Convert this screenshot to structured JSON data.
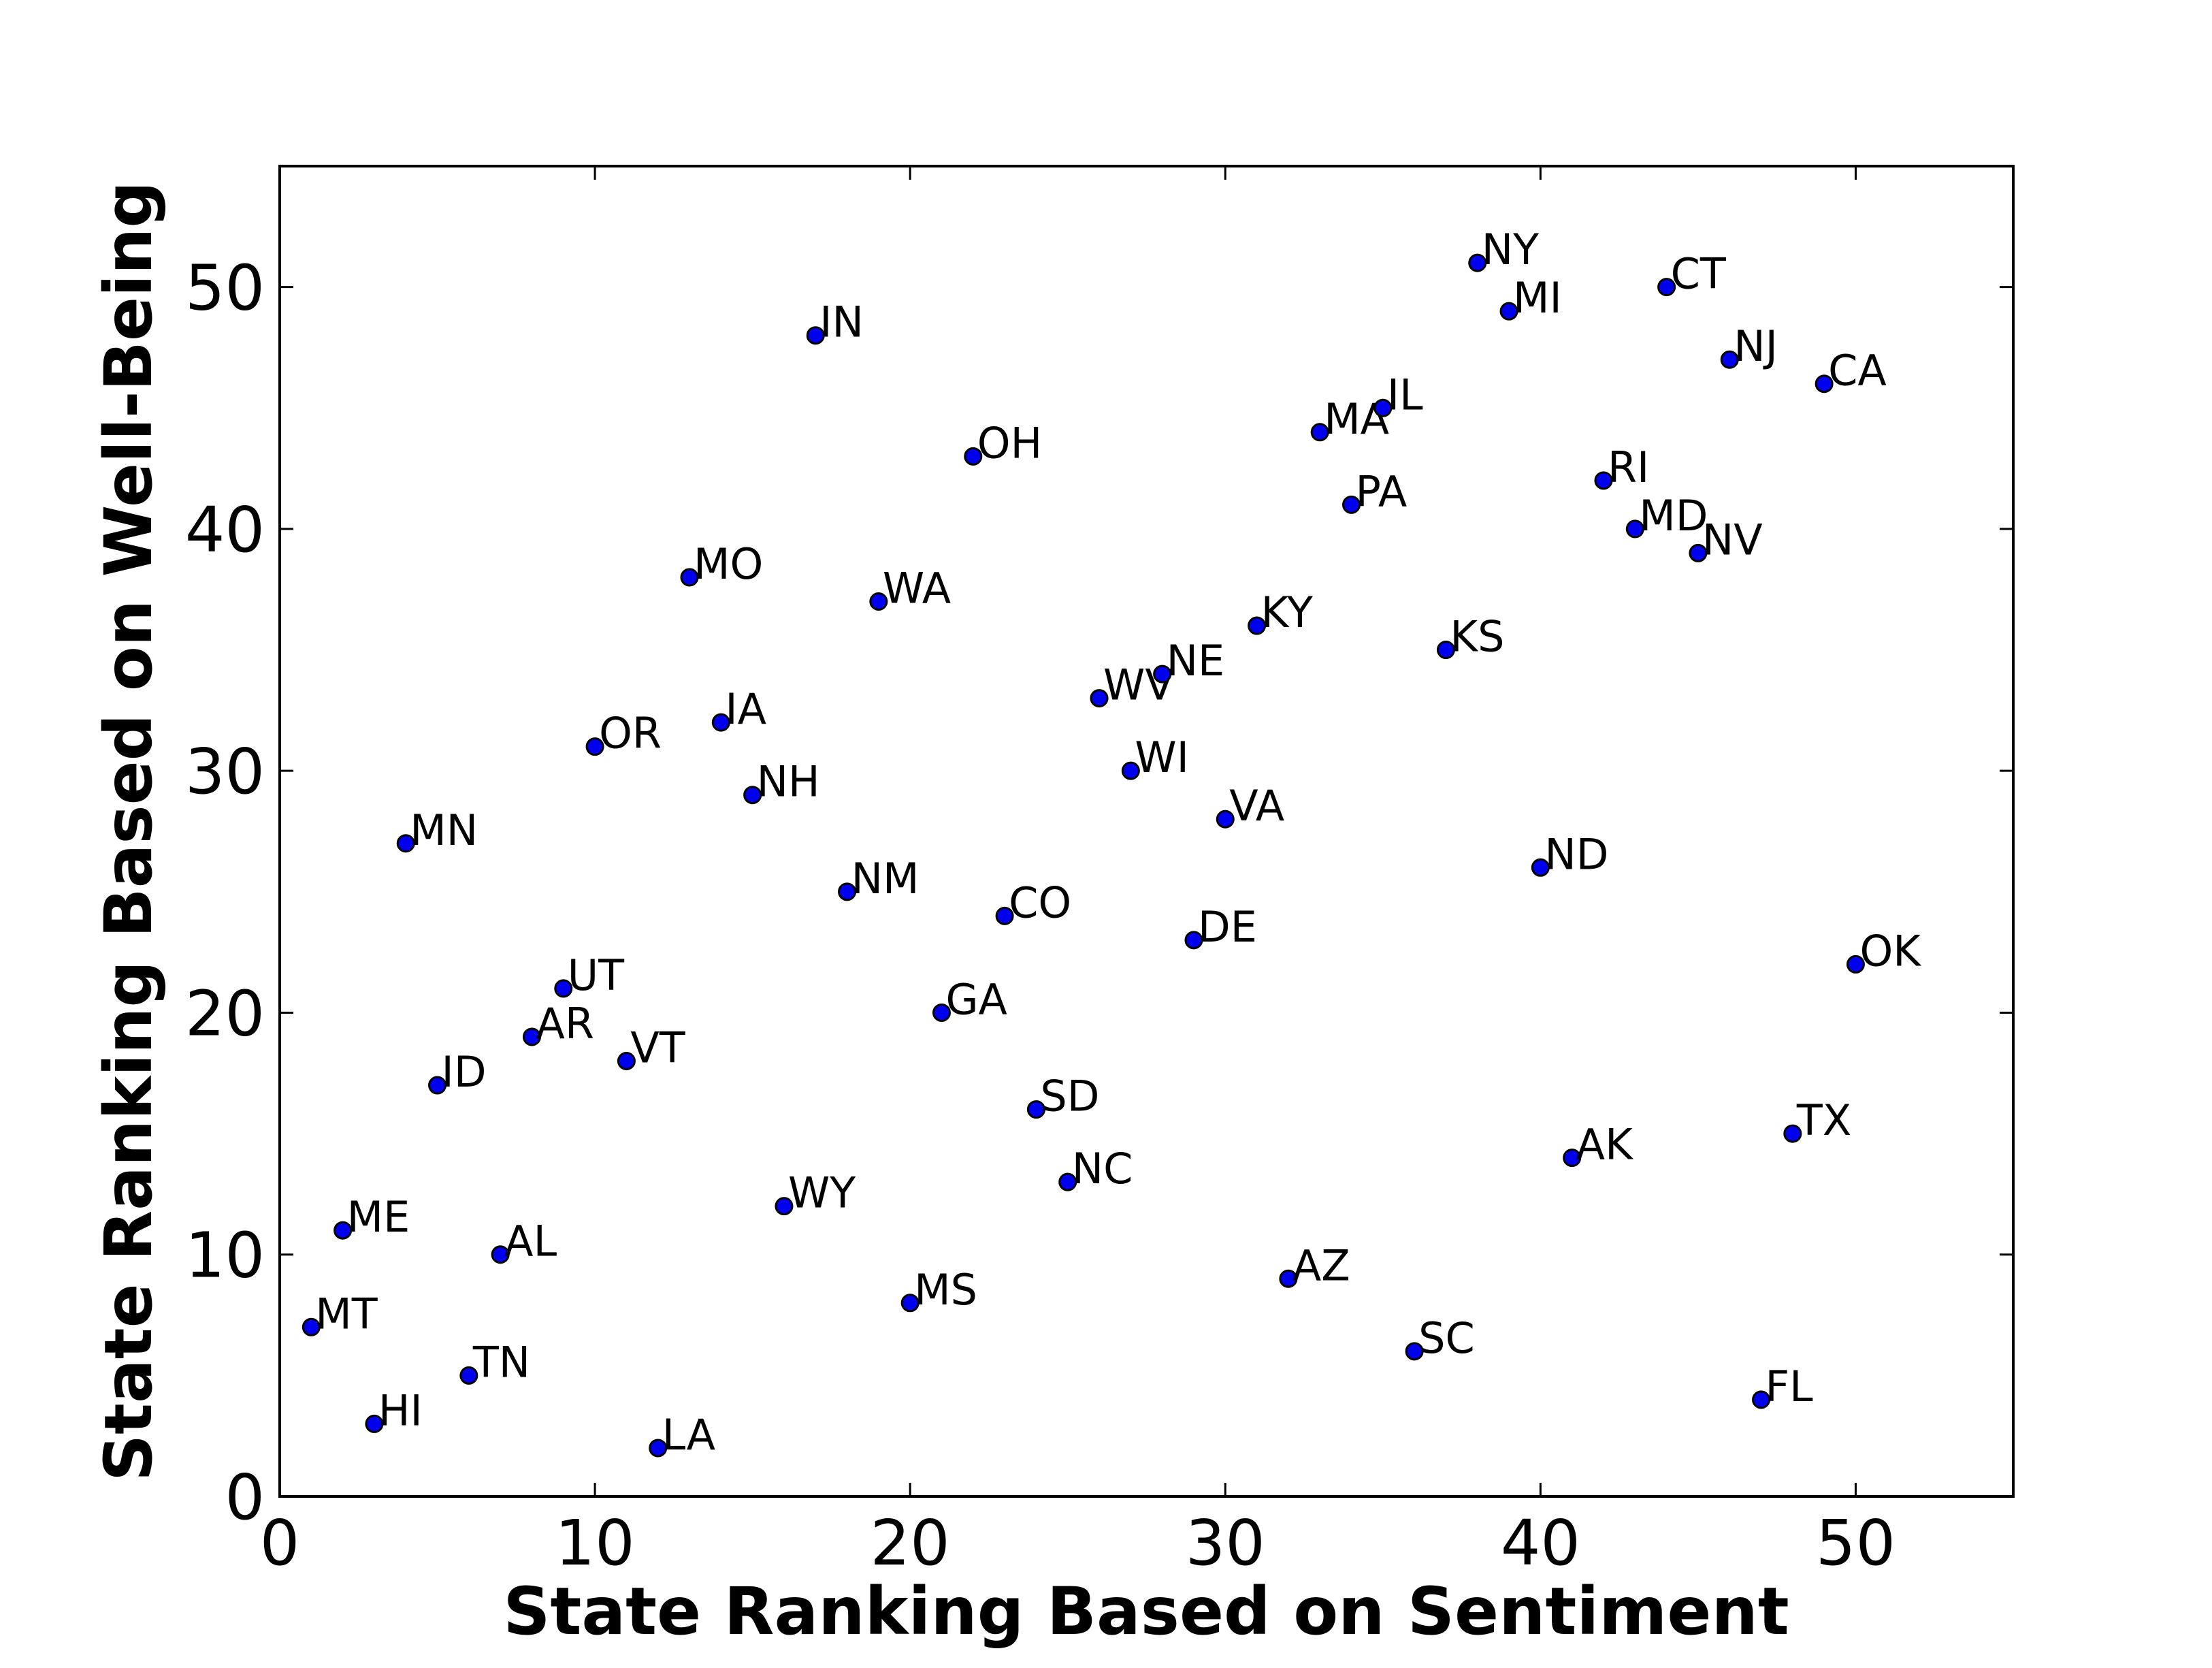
{
  "chart_data": {
    "type": "scatter",
    "x_label": "State Ranking Based on Sentiment",
    "y_label": "State Ranking Based on Well-Being",
    "labels": [
      "MT",
      "ME",
      "HI",
      "MN",
      "ID",
      "TN",
      "AL",
      "AR",
      "UT",
      "OR",
      "VT",
      "LA",
      "MO",
      "IA",
      "NH",
      "WY",
      "IN",
      "NM",
      "WA",
      "MS",
      "GA",
      "OH",
      "CO",
      "SD",
      "NC",
      "WV",
      "WI",
      "NE",
      "DE",
      "VA",
      "KY",
      "AZ",
      "MA",
      "PA",
      "IL",
      "SC",
      "KS",
      "NY",
      "MI",
      "ND",
      "AK",
      "RI",
      "MD",
      "CT",
      "NV",
      "NJ",
      "FL",
      "TX",
      "CA",
      "OK"
    ],
    "x": [
      1,
      2,
      3,
      4,
      5,
      6,
      7,
      8,
      9,
      10,
      11,
      12,
      13,
      14,
      15,
      16,
      17,
      18,
      19,
      20,
      21,
      22,
      23,
      24,
      25,
      26,
      27,
      28,
      29,
      30,
      31,
      32,
      33,
      34,
      35,
      36,
      37,
      38,
      39,
      40,
      41,
      42,
      43,
      44,
      45,
      46,
      47,
      48,
      49,
      50
    ],
    "values": [
      7,
      11,
      3,
      27,
      17,
      5,
      10,
      19,
      21,
      31,
      18,
      2,
      38,
      32,
      29,
      12,
      48,
      25,
      37,
      8,
      20,
      43,
      24,
      16,
      13,
      33,
      30,
      34,
      23,
      28,
      36,
      9,
      44,
      41,
      45,
      6,
      35,
      51,
      49,
      26,
      14,
      42,
      40,
      50,
      39,
      47,
      4,
      15,
      46,
      22
    ],
    "color": "#0000ee",
    "xlim": [
      0,
      55
    ],
    "ylim": [
      0,
      55
    ],
    "xticks": [
      0,
      10,
      20,
      30,
      40,
      50
    ],
    "yticks": [
      0,
      10,
      20,
      30,
      40,
      50
    ]
  }
}
